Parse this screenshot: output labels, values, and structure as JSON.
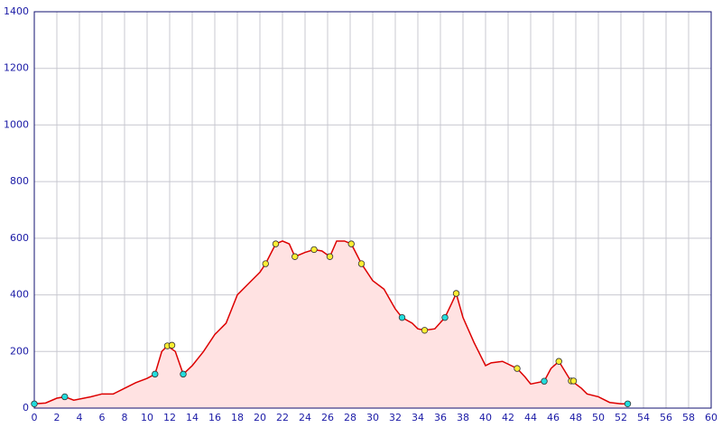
{
  "chart_data": {
    "type": "area",
    "x": [
      0,
      1,
      2,
      2.7,
      3.5,
      5,
      6,
      7,
      8,
      9,
      10,
      10.7,
      11.3,
      11.8,
      12.5,
      13.2,
      14,
      15,
      16,
      17,
      18,
      19,
      20,
      20.5,
      21.4,
      22,
      22.6,
      23.1,
      24,
      24.8,
      25.5,
      26.2,
      26.8,
      27.5,
      28.1,
      29,
      30,
      31,
      32,
      32.6,
      33.5,
      34,
      34.6,
      35.5,
      36.4,
      37,
      37.4,
      38,
      39,
      40,
      40.5,
      41.5,
      42.8,
      43.5,
      44,
      45.2,
      45.8,
      46.5,
      47.5,
      48.5,
      49,
      50,
      51,
      52,
      52.6
    ],
    "values": [
      15,
      18,
      35,
      40,
      28,
      40,
      50,
      50,
      70,
      90,
      105,
      120,
      200,
      220,
      200,
      120,
      150,
      200,
      260,
      300,
      400,
      440,
      480,
      510,
      580,
      590,
      580,
      535,
      550,
      560,
      555,
      535,
      590,
      590,
      580,
      510,
      450,
      420,
      350,
      320,
      300,
      280,
      275,
      280,
      320,
      370,
      405,
      320,
      230,
      150,
      160,
      165,
      140,
      110,
      85,
      95,
      140,
      165,
      100,
      70,
      50,
      40,
      20,
      15,
      15
    ],
    "color": "#dd0000",
    "fill": "#ffe2e2",
    "markers": [
      {
        "color": "#22dddd",
        "x": [
          0,
          2.7,
          10.7,
          13.2,
          32.6,
          36.4,
          45.2,
          52.6
        ],
        "values": [
          15,
          40,
          120,
          120,
          320,
          320,
          95,
          15
        ]
      },
      {
        "color": "#ffee33",
        "x": [
          11.8,
          12.2,
          20.5,
          21.4,
          23.1,
          24.8,
          26.2,
          28.1,
          29,
          34.6,
          37.4,
          42.8,
          46.5,
          47.6,
          47.8
        ],
        "values": [
          220,
          222,
          510,
          580,
          535,
          560,
          535,
          580,
          510,
          275,
          405,
          140,
          165,
          96,
          96
        ]
      }
    ],
    "xlim": [
      0,
      60
    ],
    "xticks": [
      0,
      2,
      4,
      6,
      8,
      10,
      12,
      14,
      16,
      18,
      20,
      22,
      24,
      26,
      28,
      30,
      32,
      34,
      36,
      38,
      40,
      42,
      44,
      46,
      48,
      50,
      52,
      54,
      56,
      58,
      60
    ],
    "ylim": [
      0,
      1400
    ],
    "yticks": [
      0,
      200,
      400,
      600,
      800,
      1000,
      1200,
      1400
    ],
    "grid": true
  }
}
